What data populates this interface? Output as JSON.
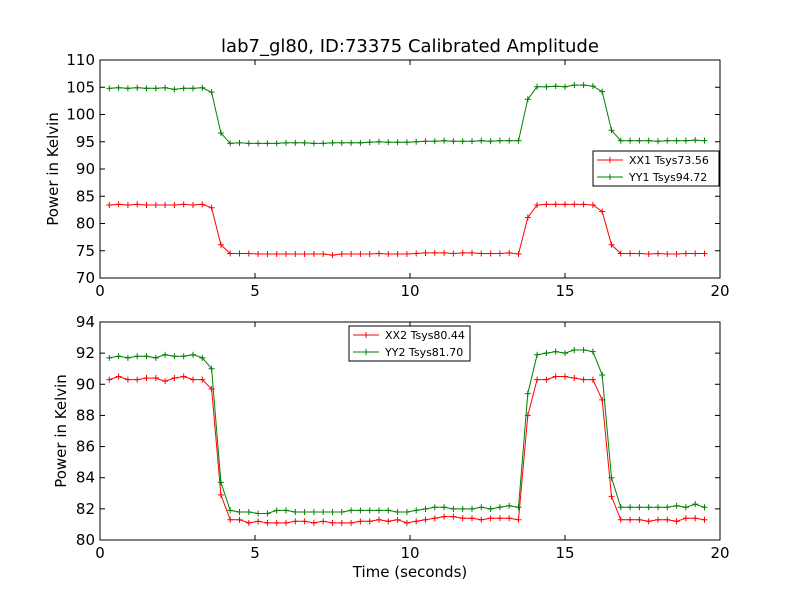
{
  "figure": {
    "title": "lab7_gl80, ID:73375 Calibrated Amplitude",
    "xlabel": "Time (seconds)"
  },
  "colors": {
    "XX": "#ff0000",
    "YY": "#007f00",
    "axes": "#000000"
  },
  "chart_data": [
    {
      "type": "line",
      "ylabel": "Power in Kelvin",
      "xlim": [
        0,
        20
      ],
      "ylim": [
        70,
        110
      ],
      "xticks": [
        0,
        5,
        10,
        15,
        20
      ],
      "yticks": [
        70,
        75,
        80,
        85,
        90,
        95,
        100,
        105,
        110
      ],
      "grid": false,
      "legend_position": "center-right",
      "x": [
        0.3,
        0.6,
        0.9,
        1.2,
        1.5,
        1.8,
        2.1,
        2.4,
        2.7,
        3.0,
        3.3,
        3.6,
        3.9,
        4.2,
        4.5,
        4.8,
        5.1,
        5.4,
        5.7,
        6.0,
        6.3,
        6.6,
        6.9,
        7.2,
        7.5,
        7.8,
        8.1,
        8.4,
        8.7,
        9.0,
        9.3,
        9.6,
        9.9,
        10.2,
        10.5,
        10.8,
        11.1,
        11.4,
        11.7,
        12.0,
        12.3,
        12.6,
        12.9,
        13.2,
        13.5,
        13.8,
        14.1,
        14.4,
        14.7,
        15.0,
        15.3,
        15.6,
        15.9,
        16.2,
        16.5,
        16.8,
        17.1,
        17.4,
        17.7,
        18.0,
        18.3,
        18.6,
        18.9,
        19.2,
        19.5
      ],
      "series": [
        {
          "name": "XX1 Tsys73.56",
          "color": "#ff0000",
          "values": [
            83.4,
            83.5,
            83.4,
            83.5,
            83.4,
            83.4,
            83.4,
            83.4,
            83.5,
            83.4,
            83.5,
            82.9,
            76.1,
            74.5,
            74.5,
            74.5,
            74.4,
            74.4,
            74.4,
            74.4,
            74.4,
            74.4,
            74.4,
            74.4,
            74.2,
            74.4,
            74.4,
            74.4,
            74.4,
            74.5,
            74.4,
            74.4,
            74.4,
            74.5,
            74.6,
            74.6,
            74.6,
            74.5,
            74.6,
            74.6,
            74.5,
            74.5,
            74.5,
            74.6,
            74.4,
            81.1,
            83.4,
            83.5,
            83.5,
            83.5,
            83.5,
            83.5,
            83.4,
            82.2,
            76.1,
            74.5,
            74.5,
            74.5,
            74.4,
            74.5,
            74.4,
            74.4,
            74.5,
            74.5,
            74.5
          ]
        },
        {
          "name": "YY1 Tsys94.72",
          "color": "#007f00",
          "values": [
            104.8,
            104.9,
            104.8,
            104.9,
            104.8,
            104.8,
            104.9,
            104.6,
            104.8,
            104.8,
            104.9,
            104.1,
            96.6,
            94.7,
            94.8,
            94.7,
            94.7,
            94.7,
            94.7,
            94.8,
            94.8,
            94.8,
            94.7,
            94.7,
            94.8,
            94.8,
            94.8,
            94.8,
            94.9,
            95.0,
            94.9,
            94.9,
            94.9,
            95.0,
            95.1,
            95.1,
            95.2,
            95.1,
            95.1,
            95.1,
            95.2,
            95.1,
            95.2,
            95.2,
            95.2,
            102.8,
            105.1,
            105.1,
            105.2,
            105.1,
            105.4,
            105.4,
            105.2,
            104.2,
            97.1,
            95.2,
            95.2,
            95.2,
            95.2,
            95.1,
            95.2,
            95.2,
            95.2,
            95.3,
            95.2
          ]
        }
      ]
    },
    {
      "type": "line",
      "ylabel": "Power in Kelvin",
      "xlabel": "Time (seconds)",
      "xlim": [
        0,
        20
      ],
      "ylim": [
        80,
        94
      ],
      "xticks": [
        0,
        5,
        10,
        15,
        20
      ],
      "yticks": [
        80,
        82,
        84,
        86,
        88,
        90,
        92,
        94
      ],
      "grid": false,
      "legend_position": "upper-center",
      "x": [
        0.3,
        0.6,
        0.9,
        1.2,
        1.5,
        1.8,
        2.1,
        2.4,
        2.7,
        3.0,
        3.3,
        3.6,
        3.9,
        4.2,
        4.5,
        4.8,
        5.1,
        5.4,
        5.7,
        6.0,
        6.3,
        6.6,
        6.9,
        7.2,
        7.5,
        7.8,
        8.1,
        8.4,
        8.7,
        9.0,
        9.3,
        9.6,
        9.9,
        10.2,
        10.5,
        10.8,
        11.1,
        11.4,
        11.7,
        12.0,
        12.3,
        12.6,
        12.9,
        13.2,
        13.5,
        13.8,
        14.1,
        14.4,
        14.7,
        15.0,
        15.3,
        15.6,
        15.9,
        16.2,
        16.5,
        16.8,
        17.1,
        17.4,
        17.7,
        18.0,
        18.3,
        18.6,
        18.9,
        19.2,
        19.5
      ],
      "series": [
        {
          "name": "XX2 Tsys80.44",
          "color": "#ff0000",
          "values": [
            90.3,
            90.5,
            90.3,
            90.3,
            90.4,
            90.4,
            90.2,
            90.4,
            90.5,
            90.3,
            90.3,
            89.7,
            82.9,
            81.3,
            81.3,
            81.1,
            81.2,
            81.1,
            81.1,
            81.1,
            81.2,
            81.2,
            81.1,
            81.2,
            81.1,
            81.1,
            81.1,
            81.2,
            81.2,
            81.3,
            81.2,
            81.3,
            81.1,
            81.2,
            81.3,
            81.4,
            81.5,
            81.5,
            81.4,
            81.4,
            81.3,
            81.4,
            81.4,
            81.4,
            81.3,
            88.0,
            90.3,
            90.3,
            90.5,
            90.5,
            90.4,
            90.3,
            90.3,
            89.0,
            82.8,
            81.3,
            81.3,
            81.3,
            81.2,
            81.3,
            81.3,
            81.2,
            81.4,
            81.4,
            81.3
          ]
        },
        {
          "name": "YY2 Tsys81.70",
          "color": "#007f00",
          "values": [
            91.7,
            91.8,
            91.7,
            91.8,
            91.8,
            91.7,
            91.9,
            91.8,
            91.8,
            91.9,
            91.7,
            91.0,
            83.7,
            81.9,
            81.8,
            81.8,
            81.7,
            81.7,
            81.9,
            81.9,
            81.8,
            81.8,
            81.8,
            81.8,
            81.8,
            81.8,
            81.9,
            81.9,
            81.9,
            81.9,
            81.9,
            81.8,
            81.8,
            81.9,
            82.0,
            82.1,
            82.1,
            82.0,
            82.0,
            82.0,
            82.1,
            82.0,
            82.1,
            82.2,
            82.1,
            89.4,
            91.9,
            92.0,
            92.1,
            92.0,
            92.2,
            92.2,
            92.1,
            90.6,
            84.0,
            82.1,
            82.1,
            82.1,
            82.1,
            82.1,
            82.1,
            82.2,
            82.1,
            82.3,
            82.1
          ]
        }
      ]
    }
  ]
}
